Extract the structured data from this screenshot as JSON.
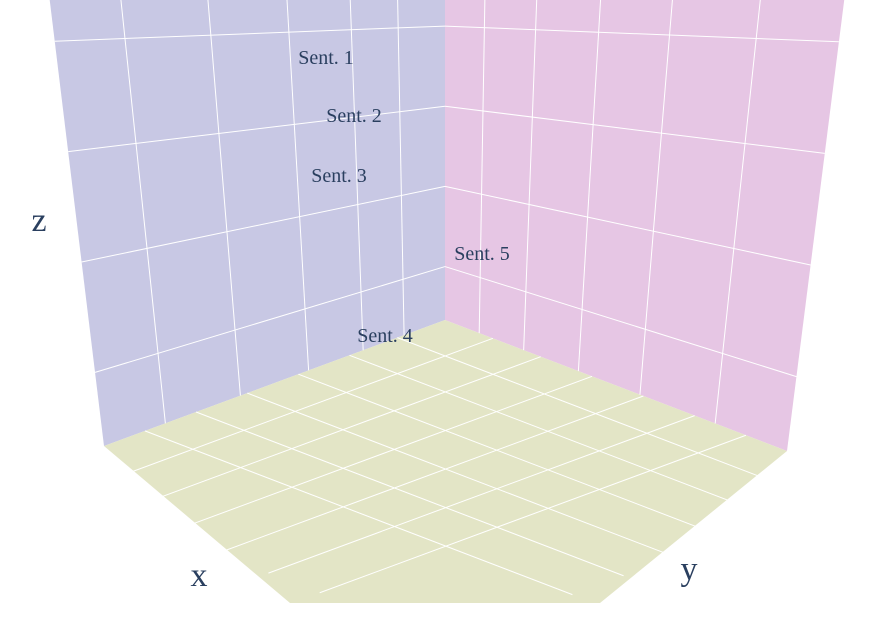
{
  "chart_data": {
    "type": "scatter3d",
    "title": "",
    "axes": {
      "x": {
        "title": "x",
        "range": [
          0,
          6
        ],
        "ticks_shown": false
      },
      "y": {
        "title": "y",
        "range": [
          0,
          6
        ],
        "ticks_shown": false
      },
      "z": {
        "title": "z",
        "range": [
          0,
          6
        ],
        "ticks_shown": false
      }
    },
    "grid": true,
    "colors": {
      "xz_wall": "#c8c8e4",
      "yz_wall": "#e6c6e4",
      "floor": "#e3e5c6",
      "grid": "#ffffff",
      "text": "#2a3f5f"
    },
    "points": [
      {
        "label": "Sent. 1"
      },
      {
        "label": "Sent. 2"
      },
      {
        "label": "Sent. 3"
      },
      {
        "label": "Sent. 4"
      },
      {
        "label": "Sent. 5"
      }
    ]
  }
}
